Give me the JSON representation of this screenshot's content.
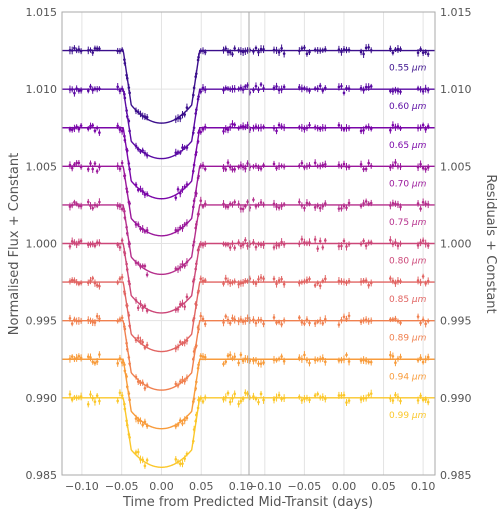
{
  "chart_data": {
    "type": "line",
    "panels": [
      {
        "name": "lightcurves",
        "xlim": [
          -0.125,
          0.11
        ],
        "xticks": [
          -0.1,
          -0.05,
          0.0,
          0.05,
          0.1
        ],
        "xtick_labels": [
          "−0.10",
          "−0.05",
          "0.00",
          "0.05",
          "0.10"
        ]
      },
      {
        "name": "residuals",
        "xlim": [
          -0.12,
          0.115
        ],
        "xticks": [
          -0.1,
          -0.05,
          0.0,
          0.05,
          0.1
        ],
        "xtick_labels": [
          "−0.10",
          "−0.05",
          "0.00",
          "0.05",
          "0.10"
        ]
      }
    ],
    "xlabel": "Time from Predicted Mid-Transit (days)",
    "ylabel_left": "Normalised Flux + Constant",
    "ylabel_right": "Residuals + Constant",
    "ylim": [
      0.985,
      1.015
    ],
    "yticks": [
      0.985,
      0.99,
      0.995,
      1.0,
      1.005,
      1.01,
      1.015
    ],
    "ytick_labels": [
      "0.985",
      "0.990",
      "0.995",
      "1.000",
      "1.005",
      "1.010",
      "1.015"
    ],
    "transit": {
      "t1": -0.048,
      "t2": -0.038,
      "t3": 0.038,
      "t4": 0.048
    },
    "series": [
      {
        "name": "0.55 μm",
        "label_value": "0.55",
        "label_unit": "μm",
        "offset": 1.0125,
        "depth": 0.0047,
        "color": "#3b0f8c"
      },
      {
        "name": "0.60 μm",
        "label_value": "0.60",
        "label_unit": "μm",
        "offset": 1.01,
        "depth": 0.0045,
        "color": "#5a0aa3"
      },
      {
        "name": "0.65 μm",
        "label_value": "0.65",
        "label_unit": "μm",
        "offset": 1.0075,
        "depth": 0.0046,
        "color": "#7a06a8"
      },
      {
        "name": "0.70 μm",
        "label_value": "0.70",
        "label_unit": "μm",
        "offset": 1.005,
        "depth": 0.0045,
        "color": "#9a179b"
      },
      {
        "name": "0.75 μm",
        "label_value": "0.75",
        "label_unit": "μm",
        "offset": 1.0025,
        "depth": 0.0045,
        "color": "#b52f8c"
      },
      {
        "name": "0.80 μm",
        "label_value": "0.80",
        "label_unit": "μm",
        "offset": 1.0,
        "depth": 0.0045,
        "color": "#cc4778"
      },
      {
        "name": "0.85 μm",
        "label_value": "0.85",
        "label_unit": "μm",
        "offset": 0.9975,
        "depth": 0.0045,
        "color": "#e16462"
      },
      {
        "name": "0.89 μm",
        "label_value": "0.89",
        "label_unit": "μm",
        "offset": 0.995,
        "depth": 0.0045,
        "color": "#f0804f"
      },
      {
        "name": "0.94 μm",
        "label_value": "0.94",
        "label_unit": "μm",
        "offset": 0.9925,
        "depth": 0.0045,
        "color": "#f89c3c"
      },
      {
        "name": "0.99 μm",
        "label_value": "0.99",
        "label_unit": "μm",
        "offset": 0.99,
        "depth": 0.0045,
        "color": "#fbc72a"
      }
    ]
  }
}
